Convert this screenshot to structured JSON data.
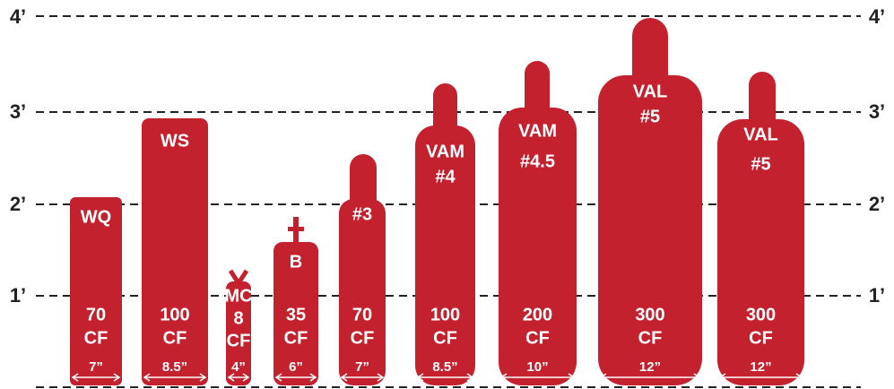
{
  "scale": {
    "left": [
      "4’",
      "3’",
      "2’",
      "1’"
    ],
    "right": [
      "4’",
      "3’",
      "2’",
      "1’"
    ]
  },
  "cylinders": [
    {
      "name": [
        "WQ"
      ],
      "capacity": [
        "70",
        "CF"
      ],
      "diameter": "7”"
    },
    {
      "name": [
        "WS"
      ],
      "capacity": [
        "100",
        "CF"
      ],
      "diameter": "8.5”"
    },
    {
      "name": [
        "MC"
      ],
      "capacity": [
        "8",
        "CF"
      ],
      "diameter": "4”"
    },
    {
      "name": [
        "B"
      ],
      "capacity": [
        "35",
        "CF"
      ],
      "diameter": "6”"
    },
    {
      "name": [
        "#3"
      ],
      "capacity": [
        "70",
        "CF"
      ],
      "diameter": "7”"
    },
    {
      "name": [
        "VAM",
        "#4"
      ],
      "capacity": [
        "100",
        "CF"
      ],
      "diameter": "8.5”"
    },
    {
      "name": [
        "VAM",
        "#4.5"
      ],
      "capacity": [
        "200",
        "CF"
      ],
      "diameter": "10”"
    },
    {
      "name": [
        "VAL",
        "#5"
      ],
      "capacity": [
        "300",
        "CF"
      ],
      "diameter": "12”"
    },
    {
      "name": [
        "VAL",
        "#5"
      ],
      "capacity": [
        "300",
        "CF"
      ],
      "diameter": "12”"
    }
  ]
}
